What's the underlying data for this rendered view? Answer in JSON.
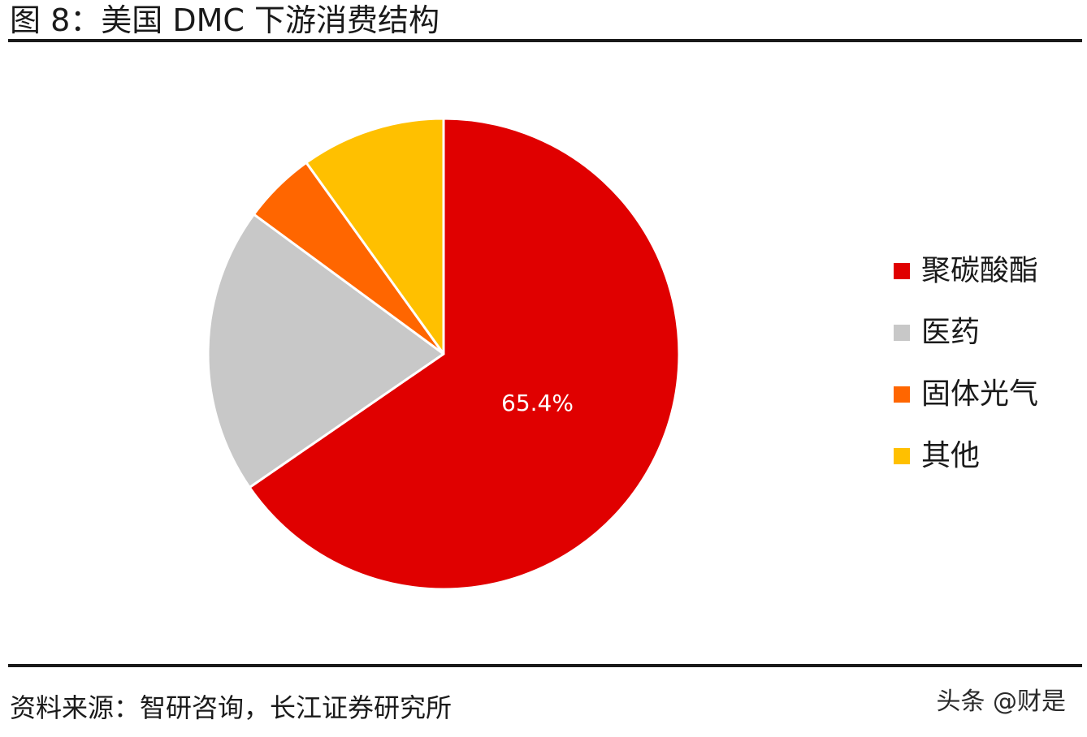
{
  "figure": {
    "title": "图 8：美国 DMC 下游消费结构",
    "source": "资料来源：智研咨询，长江证券研究所",
    "watermark": "头条 @财是"
  },
  "chart_data": {
    "type": "pie",
    "title": "图 8：美国 DMC 下游消费结构",
    "slices": [
      {
        "label": "聚碳酸酯",
        "value": 65.4,
        "color": "#e00000",
        "data_label": "65.4%"
      },
      {
        "label": "医药",
        "value": 19.7,
        "color": "#c8c8c8",
        "data_label": ""
      },
      {
        "label": "固体光气",
        "value": 5.0,
        "color": "#ff6600",
        "data_label": ""
      },
      {
        "label": "其他",
        "value": 9.9,
        "color": "#ffc000",
        "data_label": ""
      }
    ],
    "legend_position": "right",
    "start_angle": "12 o'clock, clockwise"
  }
}
